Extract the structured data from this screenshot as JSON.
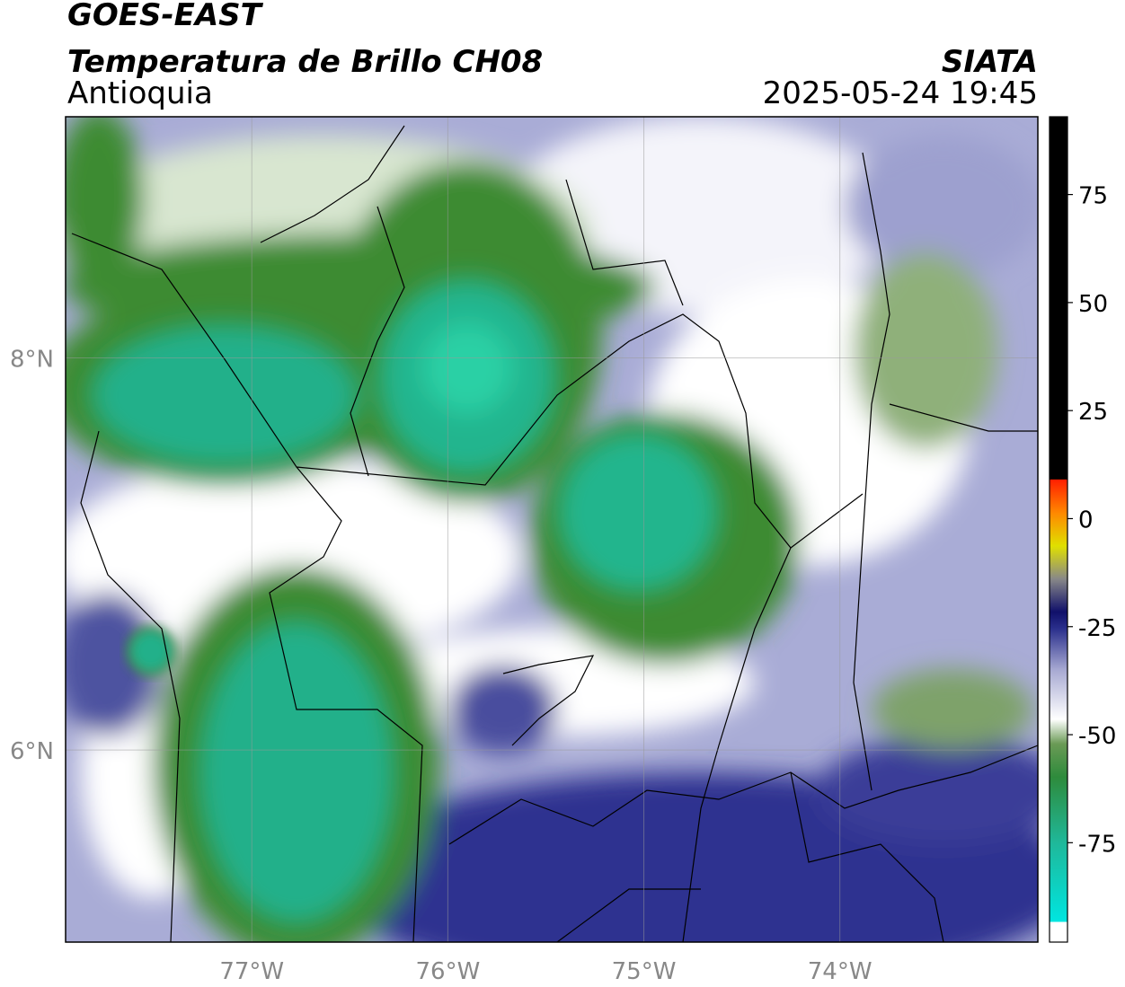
{
  "header": {
    "satellite": "GOES-EAST",
    "product": "Temperatura de Brillo CH08",
    "region": "Antioquia",
    "source": "SIATA",
    "timestamp": "2025-05-24 19:45"
  },
  "map": {
    "lonlim": [
      -77.95,
      -72.99
    ],
    "latlim": [
      5.02,
      9.23
    ],
    "lonticks": [
      {
        "value": -77,
        "label": "77°W"
      },
      {
        "value": -76,
        "label": "76°W"
      },
      {
        "value": -75,
        "label": "75°W"
      },
      {
        "value": -74,
        "label": "74°W"
      }
    ],
    "latticks": [
      {
        "value": 8,
        "label": "8°N"
      },
      {
        "value": 6,
        "label": "6°N"
      }
    ]
  },
  "colorbar": {
    "lim": [
      -98,
      93
    ],
    "ticks": [
      75,
      50,
      25,
      0,
      -25,
      -50,
      -75
    ]
  }
}
